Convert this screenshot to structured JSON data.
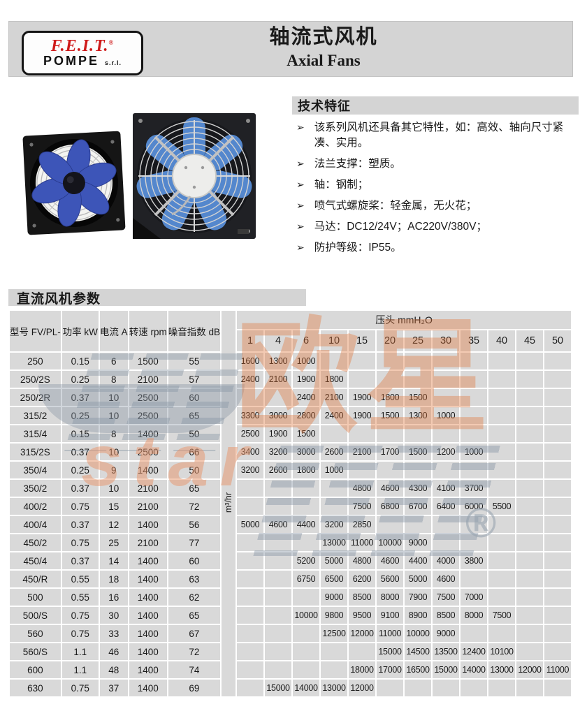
{
  "header": {
    "logo": {
      "brand": "F.E.I.T.",
      "reg": "®",
      "sub": "POMPE",
      "suffix": "s.r.l."
    },
    "title_cn": "轴流式风机",
    "title_en": "Axial Fans"
  },
  "features": {
    "title": "技术特征",
    "bullet": "➢",
    "items": [
      "该系列风机还具备其它特性，如：高效、轴向尺寸紧凑、实用。",
      "法兰支撑：塑质。",
      "轴：钢制；",
      "喷气式螺旋桨：轻金属，无火花；",
      "马达：DC12/24V；AC220V/380V；",
      "防护等级：IP55。"
    ]
  },
  "images": {
    "left_fan": "axial-fan-blue-impeller-photo",
    "right_fan": "axial-fan-front-guard-photo"
  },
  "table_section": {
    "title": "直流风机参数",
    "pressure_header": "压头 mmH₂O",
    "flow_unit": "m³/hr",
    "left_headers": [
      "型号 FV/PL-",
      "功率 kW",
      "电流 A",
      "转速 rpm",
      "噪音指数 dB"
    ],
    "pressure_columns": [
      "1",
      "4",
      "6",
      "10",
      "15",
      "20",
      "25",
      "30",
      "35",
      "40",
      "45",
      "50"
    ],
    "rows": [
      {
        "model": "250",
        "power": "0.15",
        "current": "6",
        "rpm": "1500",
        "noise": "55",
        "values": [
          "1600",
          "1300",
          "1000",
          "",
          "",
          "",
          "",
          "",
          "",
          "",
          "",
          ""
        ]
      },
      {
        "model": "250/2S",
        "power": "0.25",
        "current": "8",
        "rpm": "2100",
        "noise": "57",
        "values": [
          "2400",
          "2100",
          "1900",
          "1800",
          "",
          "",
          "",
          "",
          "",
          "",
          "",
          ""
        ]
      },
      {
        "model": "250/2R",
        "power": "0.37",
        "current": "10",
        "rpm": "2500",
        "noise": "60",
        "values": [
          "",
          "",
          "2400",
          "2100",
          "1900",
          "1800",
          "1500",
          "",
          "",
          "",
          "",
          ""
        ]
      },
      {
        "model": "315/2",
        "power": "0.25",
        "current": "10",
        "rpm": "2500",
        "noise": "65",
        "values": [
          "3300",
          "3000",
          "2800",
          "2400",
          "1900",
          "1500",
          "1300",
          "1000",
          "",
          "",
          "",
          ""
        ]
      },
      {
        "model": "315/4",
        "power": "0.15",
        "current": "8",
        "rpm": "1400",
        "noise": "50",
        "values": [
          "2500",
          "1900",
          "1500",
          "",
          "",
          "",
          "",
          "",
          "",
          "",
          "",
          ""
        ]
      },
      {
        "model": "315/2S",
        "power": "0.37",
        "current": "10",
        "rpm": "2500",
        "noise": "66",
        "values": [
          "3400",
          "3200",
          "3000",
          "2600",
          "2100",
          "1700",
          "1500",
          "1200",
          "1000",
          "",
          "",
          ""
        ]
      },
      {
        "model": "350/4",
        "power": "0.25",
        "current": "9",
        "rpm": "1400",
        "noise": "50",
        "values": [
          "3200",
          "2600",
          "1800",
          "1000",
          "",
          "",
          "",
          "",
          "",
          "",
          "",
          ""
        ]
      },
      {
        "model": "350/2",
        "power": "0.37",
        "current": "10",
        "rpm": "2100",
        "noise": "65",
        "values": [
          "",
          "",
          "",
          "",
          "4800",
          "4600",
          "4300",
          "4100",
          "3700",
          "",
          "",
          ""
        ]
      },
      {
        "model": "400/2",
        "power": "0.75",
        "current": "15",
        "rpm": "2100",
        "noise": "72",
        "values": [
          "",
          "",
          "",
          "",
          "7500",
          "6800",
          "6700",
          "6400",
          "6000",
          "5500",
          "",
          ""
        ]
      },
      {
        "model": "400/4",
        "power": "0.37",
        "current": "12",
        "rpm": "1400",
        "noise": "56",
        "values": [
          "5000",
          "4600",
          "4400",
          "3200",
          "2850",
          "",
          "",
          "",
          "",
          "",
          "",
          ""
        ]
      },
      {
        "model": "450/2",
        "power": "0.75",
        "current": "25",
        "rpm": "2100",
        "noise": "77",
        "values": [
          "",
          "",
          "",
          "13000",
          "11000",
          "10000",
          "9000",
          "",
          "",
          "",
          "",
          ""
        ]
      },
      {
        "model": "450/4",
        "power": "0.37",
        "current": "14",
        "rpm": "1400",
        "noise": "60",
        "values": [
          "",
          "",
          "5200",
          "5000",
          "4800",
          "4600",
          "4400",
          "4000",
          "3800",
          "",
          "",
          ""
        ]
      },
      {
        "model": "450/R",
        "power": "0.55",
        "current": "18",
        "rpm": "1400",
        "noise": "63",
        "values": [
          "",
          "",
          "6750",
          "6500",
          "6200",
          "5600",
          "5000",
          "4600",
          "",
          "",
          "",
          ""
        ]
      },
      {
        "model": "500",
        "power": "0.55",
        "current": "16",
        "rpm": "1400",
        "noise": "62",
        "values": [
          "",
          "",
          "",
          "9000",
          "8500",
          "8000",
          "7900",
          "7500",
          "7000",
          "",
          "",
          ""
        ]
      },
      {
        "model": "500/S",
        "power": "0.75",
        "current": "30",
        "rpm": "1400",
        "noise": "65",
        "values": [
          "",
          "",
          "10000",
          "9800",
          "9500",
          "9100",
          "8900",
          "8500",
          "8000",
          "7500",
          "",
          ""
        ]
      },
      {
        "model": "560",
        "power": "0.75",
        "current": "33",
        "rpm": "1400",
        "noise": "67",
        "values": [
          "",
          "",
          "",
          "12500",
          "12000",
          "11000",
          "10000",
          "9000",
          "",
          "",
          "",
          ""
        ]
      },
      {
        "model": "560/S",
        "power": "1.1",
        "current": "46",
        "rpm": "1400",
        "noise": "72",
        "values": [
          "",
          "",
          "",
          "",
          "",
          "15000",
          "14500",
          "13500",
          "12400",
          "10100",
          "",
          ""
        ]
      },
      {
        "model": "600",
        "power": "1.1",
        "current": "48",
        "rpm": "1400",
        "noise": "74",
        "values": [
          "",
          "",
          "",
          "",
          "18000",
          "17000",
          "16500",
          "15000",
          "14000",
          "13000",
          "12000",
          "11000"
        ]
      },
      {
        "model": "630",
        "power": "0.75",
        "current": "37",
        "rpm": "1400",
        "noise": "69",
        "values": [
          "",
          "15000",
          "14000",
          "13000",
          "12000",
          "",
          "",
          "",
          "",
          "",
          "",
          ""
        ]
      }
    ]
  },
  "watermark": {
    "cn": "欧星",
    "latin": "star",
    "reg": "®"
  },
  "colors": {
    "accent_red": "#cf1a1a",
    "bar_gray": "#d4d4d4",
    "cell_gray": "#d9d9d9",
    "watermark_orange": "#e2773b",
    "watermark_gray": "#93a0ad",
    "blade_blue_dark": "#3d55b8",
    "blade_blue_light": "#5487cd"
  }
}
